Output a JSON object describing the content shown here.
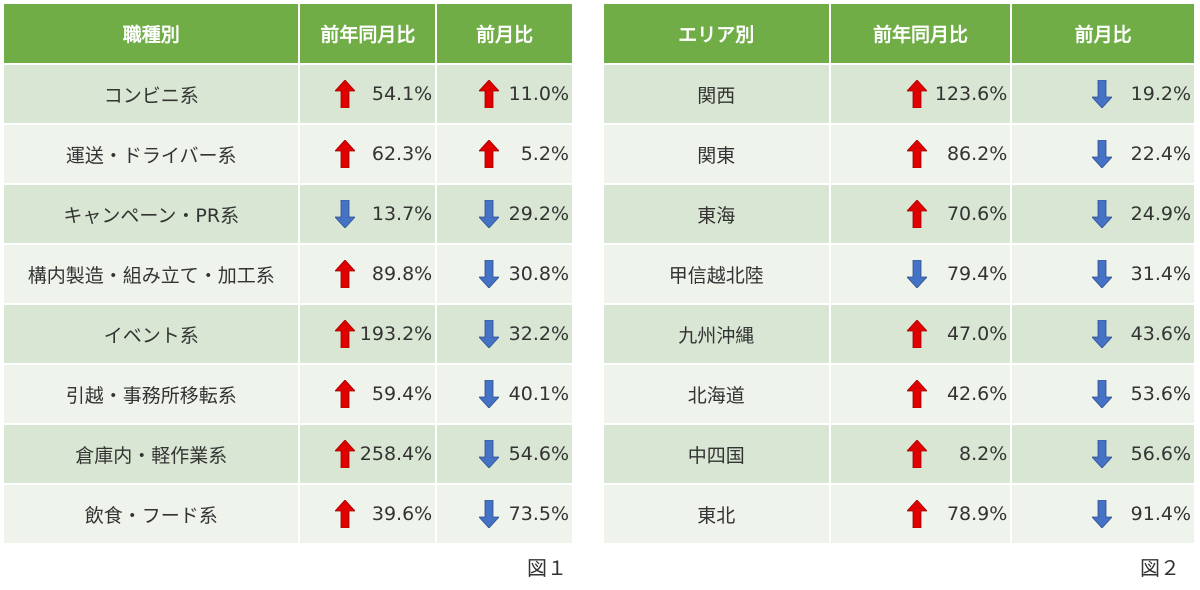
{
  "table1": {
    "headers": [
      "職種別",
      "前年同月比",
      "前月比"
    ],
    "rows": [
      {
        "name": "コンビニ系",
        "yoy": "54.1%",
        "yoy_dir": "up",
        "mom": "11.0%",
        "mom_dir": "up"
      },
      {
        "name": "運送・ドライバー系",
        "yoy": "62.3%",
        "yoy_dir": "up",
        "mom": "5.2%",
        "mom_dir": "up"
      },
      {
        "name": "キャンペーン・PR系",
        "yoy": "13.7%",
        "yoy_dir": "down",
        "mom": "29.2%",
        "mom_dir": "down"
      },
      {
        "name": "構内製造・組み立て・加工系",
        "yoy": "89.8%",
        "yoy_dir": "up",
        "mom": "30.8%",
        "mom_dir": "down"
      },
      {
        "name": "イベント系",
        "yoy": "193.2%",
        "yoy_dir": "up",
        "mom": "32.2%",
        "mom_dir": "down"
      },
      {
        "name": "引越・事務所移転系",
        "yoy": "59.4%",
        "yoy_dir": "up",
        "mom": "40.1%",
        "mom_dir": "down"
      },
      {
        "name": "倉庫内・軽作業系",
        "yoy": "258.4%",
        "yoy_dir": "up",
        "mom": "54.6%",
        "mom_dir": "down"
      },
      {
        "name": "飲食・フード系",
        "yoy": "39.6%",
        "yoy_dir": "up",
        "mom": "73.5%",
        "mom_dir": "down"
      }
    ],
    "caption": "図１"
  },
  "table2": {
    "headers": [
      "エリア別",
      "前年同月比",
      "前月比"
    ],
    "rows": [
      {
        "name": "関西",
        "yoy": "123.6%",
        "yoy_dir": "up",
        "mom": "19.2%",
        "mom_dir": "down"
      },
      {
        "name": "関東",
        "yoy": "86.2%",
        "yoy_dir": "up",
        "mom": "22.4%",
        "mom_dir": "down"
      },
      {
        "name": "東海",
        "yoy": "70.6%",
        "yoy_dir": "up",
        "mom": "24.9%",
        "mom_dir": "down"
      },
      {
        "name": "甲信越北陸",
        "yoy": "79.4%",
        "yoy_dir": "down",
        "mom": "31.4%",
        "mom_dir": "down"
      },
      {
        "name": "九州沖縄",
        "yoy": "47.0%",
        "yoy_dir": "up",
        "mom": "43.6%",
        "mom_dir": "down"
      },
      {
        "name": "北海道",
        "yoy": "42.6%",
        "yoy_dir": "up",
        "mom": "53.6%",
        "mom_dir": "down"
      },
      {
        "name": "中四国",
        "yoy": "8.2%",
        "yoy_dir": "up",
        "mom": "56.6%",
        "mom_dir": "down"
      },
      {
        "name": "東北",
        "yoy": "78.9%",
        "yoy_dir": "up",
        "mom": "91.4%",
        "mom_dir": "down"
      }
    ],
    "caption": "図２"
  },
  "colors": {
    "header_bg": "#70ad47",
    "row_odd": "#d9e6d3",
    "row_even": "#eef3ec",
    "arrow_up": "#e00000",
    "arrow_down": "#4472c4"
  },
  "icons": {
    "up": "arrow-up-icon",
    "down": "arrow-down-icon"
  }
}
